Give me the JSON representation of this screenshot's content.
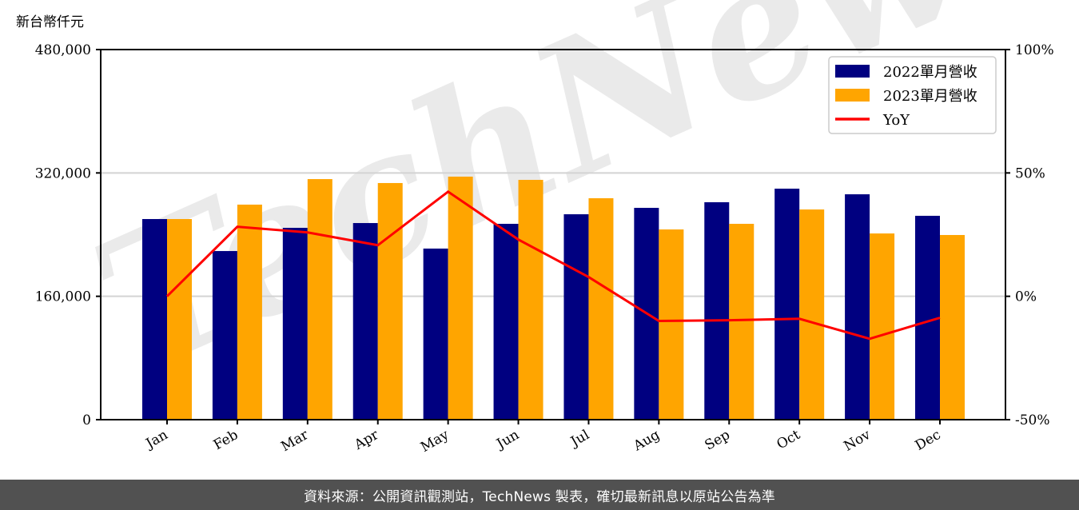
{
  "unit_label": "新台幣仟元",
  "footer": {
    "source_text": "資料來源：公開資訊觀測站，TechNews 製表，確切最新訊息以原站公告為準"
  },
  "watermark": {
    "text": "TechNews"
  },
  "colors": {
    "series_2022": "#000080",
    "series_2023": "#FFA500",
    "yoy_line": "#FF0000",
    "gridline": "#d3d3d3",
    "footer_bg": "#515151"
  },
  "chart_data": {
    "type": "bar",
    "title": "",
    "xlabel": "",
    "ylabel": "新台幣仟元",
    "ylabel_right": "",
    "categories": [
      "Jan",
      "Feb",
      "Mar",
      "Apr",
      "May",
      "Jun",
      "Jul",
      "Aug",
      "Sep",
      "Oct",
      "Nov",
      "Dec"
    ],
    "series": [
      {
        "name": "2022單月營收",
        "type": "bar",
        "axis": "left",
        "color": "#000080",
        "values": [
          260200,
          218700,
          248800,
          255000,
          221900,
          254000,
          266400,
          274700,
          282000,
          299600,
          292300,
          264400
        ]
      },
      {
        "name": "2023單月營收",
        "type": "bar",
        "axis": "left",
        "color": "#FFA500",
        "values": [
          260200,
          278900,
          312000,
          306900,
          315200,
          311000,
          287200,
          246700,
          254000,
          272600,
          241500,
          239500
        ]
      },
      {
        "name": "YoY",
        "type": "line",
        "axis": "right",
        "color": "#FF0000",
        "unit": "%",
        "values": [
          0.0,
          28.2,
          25.9,
          20.7,
          42.4,
          23.0,
          7.8,
          -10.0,
          -9.7,
          -9.1,
          -17.2,
          -8.7
        ]
      }
    ],
    "ylim": [
      0,
      480000
    ],
    "yticks": [
      0,
      160000,
      320000,
      480000
    ],
    "ytick_labels": [
      "0",
      "160,000",
      "320,000",
      "480,000"
    ],
    "ylim_right": [
      -50,
      100
    ],
    "yticks_right": [
      -50,
      0,
      50,
      100
    ],
    "ytick_labels_right": [
      "-50%",
      "0%",
      "50%",
      "100%"
    ],
    "grid": {
      "y": true,
      "x": false
    },
    "legend": {
      "position": "upper right",
      "entries": [
        "2022單月營收",
        "2023單月營收",
        "YoY"
      ]
    },
    "xtick_rotation": 30
  }
}
